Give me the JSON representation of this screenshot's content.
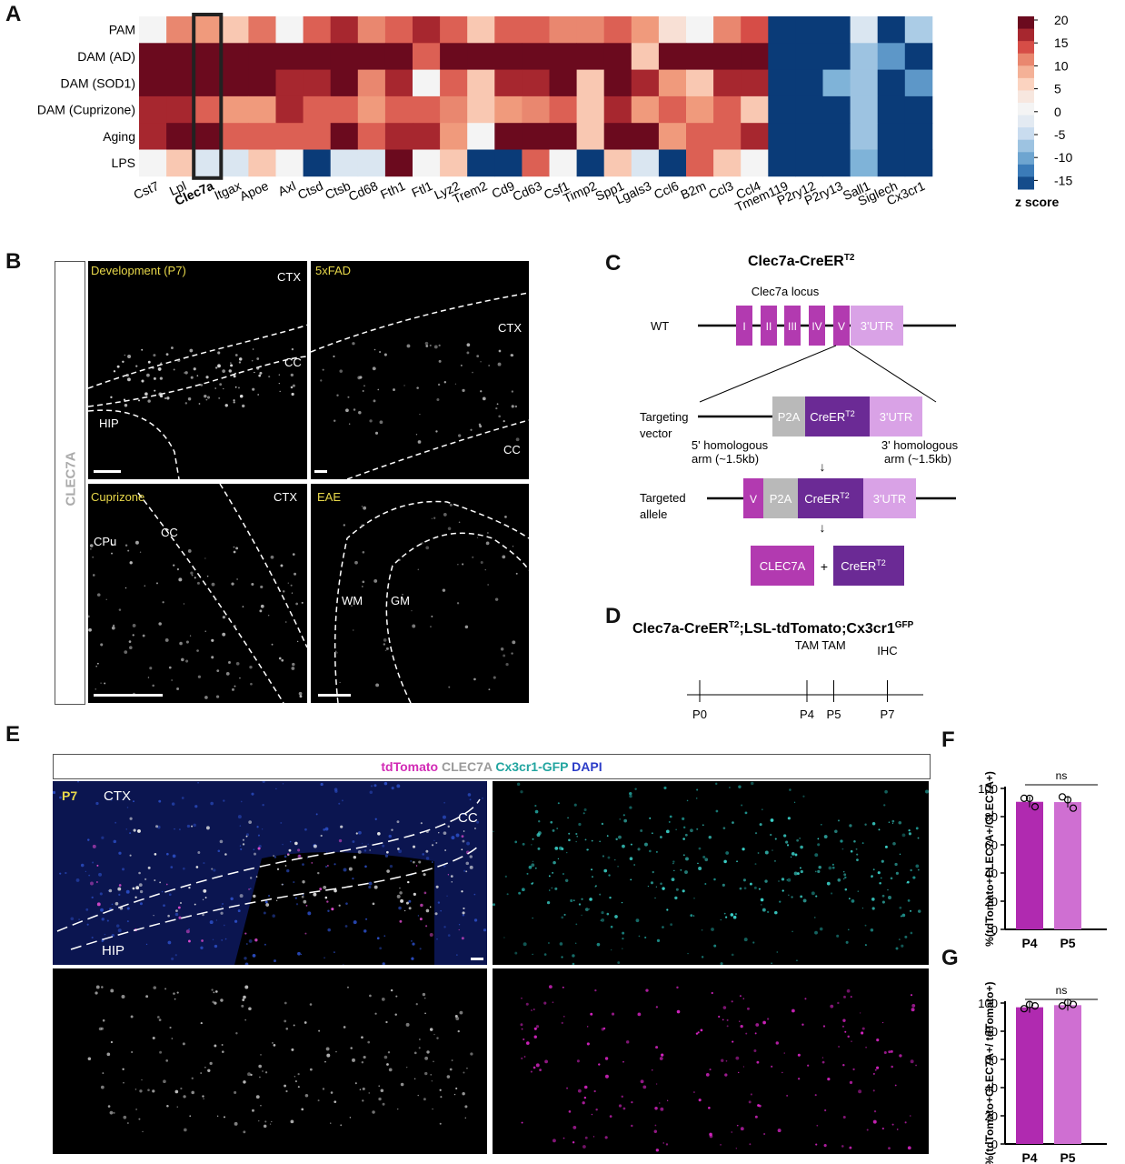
{
  "panels": {
    "A": "A",
    "B": "B",
    "C": "C",
    "D": "D",
    "E": "E",
    "F": "F",
    "G": "G"
  },
  "heatmap": {
    "rows": [
      "PAM",
      "DAM (AD)",
      "DAM (SOD1)",
      "DAM (Cuprizone)",
      "Aging",
      "LPS"
    ],
    "cols": [
      "Cst7",
      "Lpl",
      "Clec7a",
      "Itgax",
      "Apoe",
      "Axl",
      "Ctsd",
      "Ctsb",
      "Cd68",
      "Fth1",
      "Ftl1",
      "Lyz2",
      "Trem2",
      "Cd9",
      "Cd63",
      "Csf1",
      "Timp2",
      "Spp1",
      "Lgals3",
      "Ccl6",
      "B2m",
      "Ccl3",
      "Ccl4",
      "Tmem119",
      "P2ry12",
      "P2ry13",
      "Sall1",
      "Siglech",
      "Cx3cr1"
    ],
    "highlight_col": "Clec7a",
    "values": [
      [
        0,
        11,
        10,
        6,
        12,
        0,
        13,
        17,
        11,
        13,
        17,
        13,
        6,
        13,
        13,
        11,
        11,
        13,
        10,
        3,
        0,
        11,
        14,
        -18,
        -18,
        -18,
        -3,
        -18,
        -7
      ],
      [
        20,
        20,
        20,
        20,
        20,
        20,
        20,
        20,
        20,
        20,
        13,
        20,
        20,
        20,
        20,
        20,
        20,
        20,
        6,
        20,
        20,
        20,
        20,
        -18,
        -18,
        -18,
        -8,
        -12,
        -18
      ],
      [
        20,
        20,
        20,
        20,
        20,
        17,
        17,
        20,
        11,
        17,
        0,
        13,
        6,
        17,
        17,
        20,
        6,
        20,
        17,
        10,
        6,
        17,
        17,
        -18,
        -18,
        -10,
        -8,
        -18,
        -12
      ],
      [
        17,
        17,
        13,
        10,
        10,
        17,
        13,
        13,
        10,
        13,
        13,
        11,
        6,
        10,
        11,
        13,
        6,
        17,
        10,
        13,
        10,
        13,
        6,
        -18,
        -18,
        -18,
        -8,
        -18,
        -18
      ],
      [
        17,
        20,
        20,
        13,
        13,
        13,
        13,
        20,
        13,
        17,
        17,
        10,
        0,
        20,
        20,
        20,
        6,
        20,
        20,
        10,
        13,
        13,
        17,
        -18,
        -18,
        -18,
        -8,
        -18,
        -18
      ],
      [
        0,
        6,
        -3,
        -3,
        6,
        0,
        -18,
        -3,
        -3,
        20,
        0,
        6,
        -18,
        -18,
        13,
        0,
        -18,
        6,
        -3,
        -18,
        13,
        6,
        0,
        -18,
        -18,
        -18,
        -10,
        -18,
        -18
      ]
    ],
    "colorbar_ticks": [
      "20",
      "15",
      "10",
      "5",
      "0",
      "-5",
      "-10",
      "-15"
    ],
    "colorbar_title": "z score",
    "colors": {
      "max": "#6b0a1e",
      "zero": "#f4f4f4",
      "min": "#0a3b78"
    }
  },
  "panelB": {
    "side_label": "CLEC7A",
    "p1": {
      "title": "Development (P7)",
      "labels": [
        "CTX",
        "CC",
        "HIP"
      ]
    },
    "p2": {
      "title": "5xFAD",
      "labels": [
        "CTX",
        "CC"
      ]
    },
    "p3": {
      "title": "Cuprizone",
      "labels": [
        "CTX",
        "CPu",
        "CC"
      ]
    },
    "p4": {
      "title": "EAE",
      "labels": [
        "WM",
        "GM"
      ]
    }
  },
  "panelC": {
    "title": "Clec7a-CreER",
    "title_sup": "T2",
    "locus_label": "Clec7a locus",
    "wt": "WT",
    "exons": [
      "I",
      "II",
      "III",
      "IV",
      "V"
    ],
    "utr": "3'UTR",
    "p2a": "P2A",
    "creer": "CreER",
    "sup": "T2",
    "targeting": "Targeting",
    "vector": "vector",
    "arm5a": "5' homologous",
    "arm5b": "arm (~1.5kb)",
    "arm3a": "3' homologous",
    "arm3b": "arm (~1.5kb)",
    "targeted": "Targeted",
    "allele": "allele",
    "clec7a": "CLEC7A",
    "plus": "+",
    "arrow": "↓",
    "colors": {
      "exon": "#b23ab0",
      "utr": "#d9a2e6",
      "p2a": "#b9b9b9",
      "creer": "#6b2a95"
    }
  },
  "panelD": {
    "title_a": "Clec7a-CreER",
    "title_sup1": "T2",
    "title_b": ";LSL-tdTomato;Cx3cr1",
    "title_sup2": "GFP",
    "events": [
      {
        "label": "TAM",
        "tick": "P4",
        "day": 4
      },
      {
        "label": "TAM",
        "tick": "P5",
        "day": 5
      },
      {
        "label": "IHC",
        "tick": "P7",
        "day": 7
      }
    ],
    "start": "P0"
  },
  "panelE": {
    "legend": [
      {
        "text": "tdTomato",
        "color": "#d22bb5"
      },
      {
        "text": "CLEC7A",
        "color": "#9a9a9a"
      },
      {
        "text": "Cx3cr1-GFP",
        "color": "#22a5a0"
      },
      {
        "text": "DAPI",
        "color": "#2b3cc8"
      }
    ],
    "p7": "P7",
    "labels": [
      "CTX",
      "CC",
      "HIP"
    ]
  },
  "panelF": {
    "ylabel": "%(tdTomato+CLEC7A+/CLEC7A+)",
    "ticks": [
      "100",
      "80",
      "60",
      "40",
      "20",
      "0"
    ],
    "categories": [
      "P4",
      "P5"
    ],
    "values": [
      90.5,
      90.3
    ],
    "points": [
      [
        93,
        91,
        87
      ],
      [
        94,
        90,
        86
      ]
    ],
    "sig": "ns",
    "colors": [
      "#b02ab0",
      "#cf6fd2"
    ]
  },
  "panelG": {
    "ylabel": "%(tdTomato+CLEC7A+/ tdTomato+)",
    "ticks": [
      "100",
      "80",
      "60",
      "40",
      "20",
      "0"
    ],
    "categories": [
      "P4",
      "P5"
    ],
    "values": [
      97.0,
      98.5
    ],
    "points": [
      [
        96,
        97,
        98
      ],
      [
        98,
        98.5,
        99
      ]
    ],
    "sig": "ns",
    "colors": [
      "#b02ab0",
      "#cf6fd2"
    ]
  },
  "chart_data": [
    {
      "type": "heatmap",
      "rows": [
        "PAM",
        "DAM (AD)",
        "DAM (SOD1)",
        "DAM (Cuprizone)",
        "Aging",
        "LPS"
      ],
      "columns": [
        "Cst7",
        "Lpl",
        "Clec7a",
        "Itgax",
        "Apoe",
        "Axl",
        "Ctsd",
        "Ctsb",
        "Cd68",
        "Fth1",
        "Ftl1",
        "Lyz2",
        "Trem2",
        "Cd9",
        "Cd63",
        "Csf1",
        "Timp2",
        "Spp1",
        "Lgals3",
        "Ccl6",
        "B2m",
        "Ccl3",
        "Ccl4",
        "Tmem119",
        "P2ry12",
        "P2ry13",
        "Sall1",
        "Siglech",
        "Cx3cr1"
      ],
      "colorbar_label": "z score",
      "zlim": [
        -18,
        20
      ]
    },
    {
      "type": "bar",
      "categories": [
        "P4",
        "P5"
      ],
      "values": [
        90.5,
        90.3
      ],
      "ylabel": "%(tdTomato+CLEC7A+/CLEC7A+)",
      "ylim": [
        0,
        100
      ]
    },
    {
      "type": "bar",
      "categories": [
        "P4",
        "P5"
      ],
      "values": [
        97.0,
        98.5
      ],
      "ylabel": "%(tdTomato+CLEC7A+/ tdTomato+)",
      "ylim": [
        0,
        100
      ]
    }
  ]
}
